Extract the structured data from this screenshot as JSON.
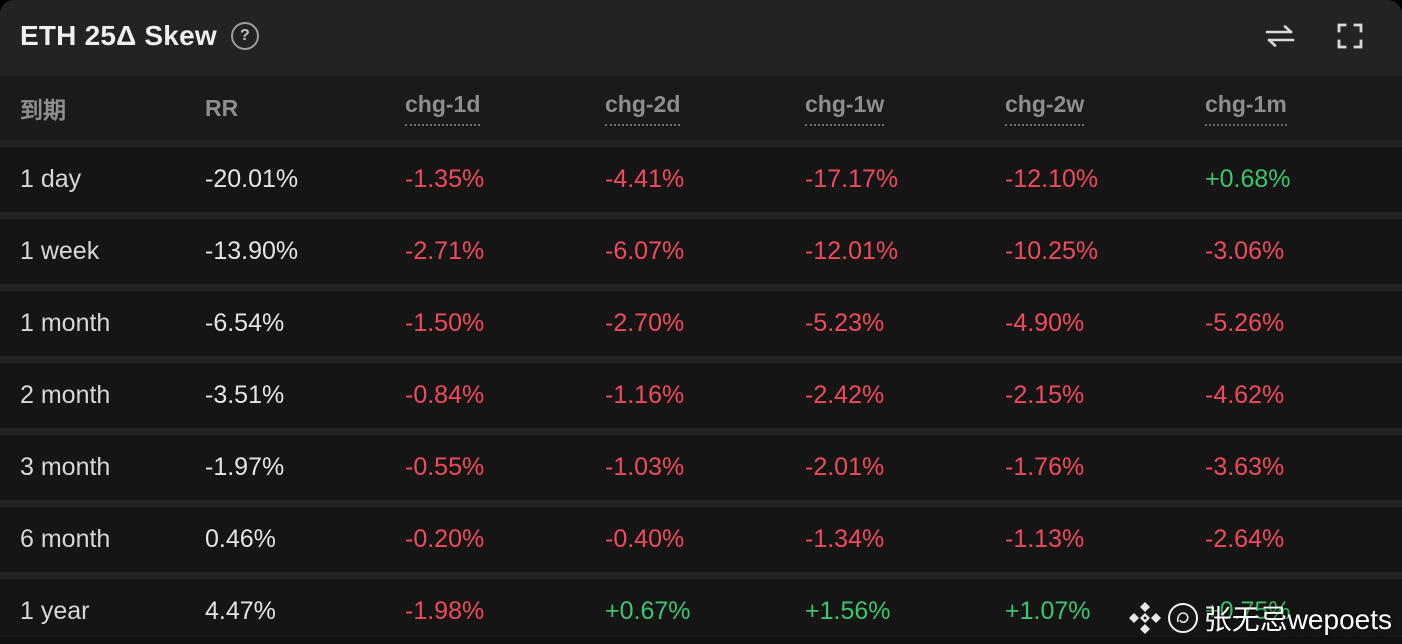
{
  "header": {
    "title": "ETH 25Δ Skew",
    "help_icon": "question-circle",
    "actions": [
      {
        "icon": "swap-arrows"
      },
      {
        "icon": "fullscreen-expand"
      }
    ]
  },
  "table": {
    "columns": [
      "到期",
      "RR",
      "chg-1d",
      "chg-2d",
      "chg-1w",
      "chg-2w",
      "chg-1m"
    ],
    "rows": [
      {
        "cells": [
          "1 day",
          "-20.01%",
          "-1.35%",
          "-4.41%",
          "-17.17%",
          "-12.10%",
          "+0.68%"
        ]
      },
      {
        "cells": [
          "1 week",
          "-13.90%",
          "-2.71%",
          "-6.07%",
          "-12.01%",
          "-10.25%",
          "-3.06%"
        ]
      },
      {
        "cells": [
          "1 month",
          "-6.54%",
          "-1.50%",
          "-2.70%",
          "-5.23%",
          "-4.90%",
          "-5.26%"
        ]
      },
      {
        "cells": [
          "2 month",
          "-3.51%",
          "-0.84%",
          "-1.16%",
          "-2.42%",
          "-2.15%",
          "-4.62%"
        ]
      },
      {
        "cells": [
          "3 month",
          "-1.97%",
          "-0.55%",
          "-1.03%",
          "-2.01%",
          "-1.76%",
          "-3.63%"
        ]
      },
      {
        "cells": [
          "6 month",
          "0.46%",
          "-0.20%",
          "-0.40%",
          "-1.34%",
          "-1.13%",
          "-2.64%"
        ]
      },
      {
        "cells": [
          "1 year",
          "4.47%",
          "-1.98%",
          "+0.67%",
          "+1.56%",
          "+1.07%",
          "+0.75%"
        ]
      }
    ]
  },
  "colors": {
    "negative": "#f04a5c",
    "positive": "#3cc56e",
    "neutral_text": "#e4e4e4",
    "header_text": "#8e8e8e",
    "row_bg": "#151515",
    "panel_bg": "#232323"
  },
  "watermark": {
    "logo_icon": "diamond-logo",
    "stamp_icon": "seal-stamp",
    "text": "张无忌wepoets"
  }
}
